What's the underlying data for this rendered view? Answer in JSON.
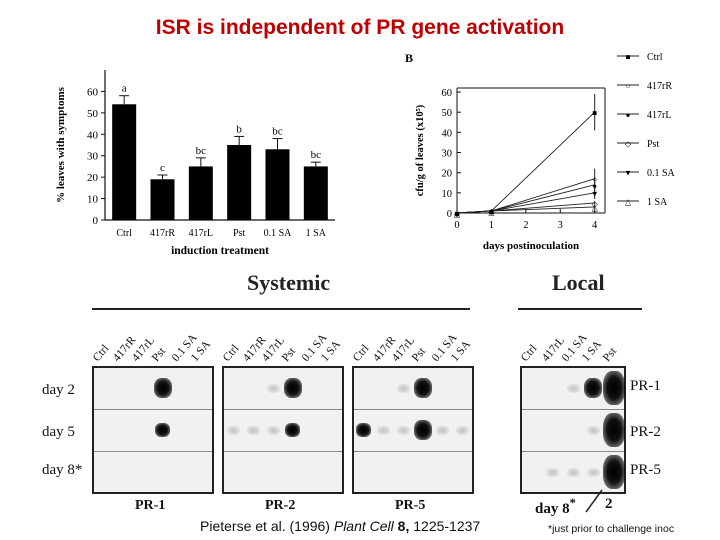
{
  "slide": {
    "title": "ISR is independent of PR gene activation",
    "citation_prefix": "Pieterse et al. (1996)",
    "citation_journal": "Plant Cell",
    "citation_vol": "8",
    "citation_comma": ",",
    "citation_pages": "1225-1237",
    "footnote": "*just prior to challenge inoc"
  },
  "chart_data": [
    {
      "type": "bar",
      "categories": [
        "Ctrl",
        "417rR",
        "417rL",
        "Pst",
        "0.1 SA",
        "1 SA"
      ],
      "values": [
        54,
        19,
        25,
        35,
        33,
        25
      ],
      "errors": [
        4,
        2,
        4,
        4,
        5,
        2
      ],
      "letters": [
        "a",
        "c",
        "bc",
        "b",
        "bc",
        "bc"
      ],
      "xlabel": "induction treatment",
      "ylabel": "% leaves with symptoms",
      "ylim": [
        0,
        70
      ],
      "yticks": [
        0,
        10,
        20,
        30,
        40,
        50,
        60
      ],
      "bar_color": "#000000"
    },
    {
      "type": "line",
      "panel_label": "B",
      "x": [
        0,
        1,
        4
      ],
      "xticks": [
        0,
        1,
        2,
        3,
        4
      ],
      "yticks": [
        0,
        10,
        20,
        30,
        40,
        50,
        60
      ],
      "xlim": [
        0,
        4.3
      ],
      "ylim": [
        0,
        62
      ],
      "xlabel": "days postinoculation",
      "ylabel": "cfu/g of leaves (x10⁵)",
      "legend_position": "right",
      "series": [
        {
          "name": "Ctrl",
          "marker": "■",
          "values": [
            0,
            1,
            50
          ],
          "err": 9
        },
        {
          "name": "417rR",
          "marker": "○",
          "values": [
            0,
            1,
            17
          ],
          "err": 5
        },
        {
          "name": "417rL",
          "marker": "●",
          "values": [
            0,
            1,
            14
          ],
          "err": 3
        },
        {
          "name": "Pst",
          "marker": "◇",
          "values": [
            0,
            1,
            5
          ],
          "err": 1
        },
        {
          "name": "0.1 SA",
          "marker": "▼",
          "values": [
            0,
            1,
            10
          ],
          "err": 3
        },
        {
          "name": "1 SA",
          "marker": "△",
          "values": [
            0,
            1,
            3
          ],
          "err": 1
        }
      ]
    }
  ],
  "systemic": {
    "heading": "Systemic",
    "lanes": [
      "Ctrl",
      "417rR",
      "417rL",
      "Pst",
      "0.1 SA",
      "1 SA"
    ],
    "rows": [
      "day 2",
      "day 5",
      "day 8*"
    ],
    "blots": [
      {
        "name": "PR-1",
        "signals": [
          [
            0,
            0,
            0,
            3,
            0,
            0
          ],
          [
            0,
            0,
            0,
            2,
            0,
            0
          ],
          [
            0,
            0,
            0,
            0,
            0,
            0
          ]
        ]
      },
      {
        "name": "PR-2",
        "signals": [
          [
            0,
            0,
            1,
            3,
            0,
            0
          ],
          [
            1,
            1,
            1,
            2,
            0,
            0
          ],
          [
            0,
            0,
            0,
            0,
            0,
            0
          ]
        ]
      },
      {
        "name": "PR-5",
        "signals": [
          [
            0,
            0,
            1,
            3,
            0,
            0
          ],
          [
            2,
            1,
            1,
            3,
            1,
            1
          ],
          [
            0,
            0,
            0,
            0,
            0,
            0
          ]
        ]
      }
    ]
  },
  "local": {
    "heading": "Local",
    "lanes": [
      "Ctrl",
      "417rL",
      "0.1 SA",
      "1 SA",
      "Pst"
    ],
    "row_labels": [
      "PR-1",
      "PR-2",
      "PR-5"
    ],
    "signals": [
      [
        0,
        0,
        1,
        3,
        4
      ],
      [
        0,
        0,
        0,
        1,
        4
      ],
      [
        0,
        1,
        1,
        1,
        4
      ]
    ],
    "bottom_label_left": "day 8",
    "bottom_label_star": "*",
    "bottom_label_right": "2"
  }
}
